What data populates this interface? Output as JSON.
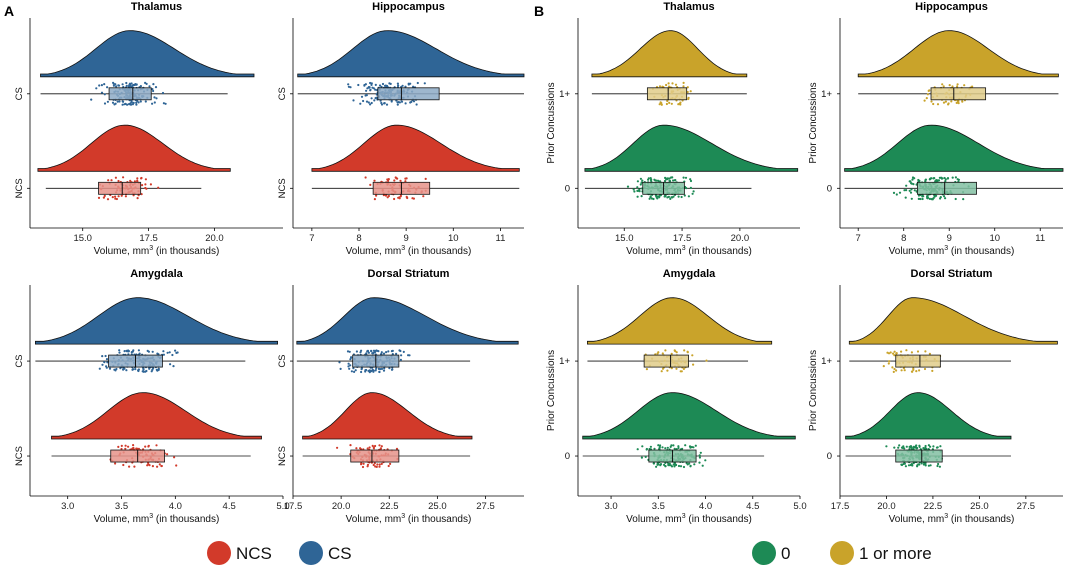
{
  "panel_letters": [
    "A",
    "B"
  ],
  "colors": {
    "NCS": "#d23a2a",
    "CS": "#2f6596",
    "zero": "#1d8a55",
    "one_plus": "#c9a32a"
  },
  "legend": {
    "left": [
      {
        "label": "NCS",
        "color": "#d23a2a"
      },
      {
        "label": "CS",
        "color": "#2f6596"
      }
    ],
    "right": [
      {
        "label": "0",
        "color": "#1d8a55"
      },
      {
        "label": "1 or more",
        "color": "#c9a32a"
      }
    ]
  },
  "xlabel_prefix": "Volume, mm",
  "xlabel_sup": "3",
  "xlabel_suffix": " (in thousands)",
  "ylabel_B": "Prior Concussions",
  "chart_data": [
    {
      "type": "raincloud",
      "panel": "A",
      "title": "Thalamus",
      "xlim": [
        13.0,
        22.6
      ],
      "xticks": [
        "15.0",
        "17.5",
        "20.0"
      ],
      "groups": [
        {
          "name": "CS",
          "color": "#2f6596",
          "min": 13.4,
          "q1": 16.0,
          "median": 16.9,
          "q3": 17.6,
          "max": 20.5,
          "peak": 16.8,
          "lo": 13.4,
          "hi": 21.5,
          "n": 160
        },
        {
          "name": "NCS",
          "color": "#d23a2a",
          "min": 13.6,
          "q1": 15.6,
          "median": 16.5,
          "q3": 17.2,
          "max": 19.5,
          "peak": 16.6,
          "lo": 13.3,
          "hi": 20.6,
          "n": 80
        }
      ]
    },
    {
      "type": "raincloud",
      "panel": "A",
      "title": "Hippocampus",
      "xlim": [
        6.6,
        11.5
      ],
      "xticks": [
        "7",
        "8",
        "9",
        "10",
        "11"
      ],
      "groups": [
        {
          "name": "CS",
          "color": "#2f6596",
          "min": 6.7,
          "q1": 8.4,
          "median": 8.9,
          "q3": 9.7,
          "max": 11.5,
          "peak": 8.6,
          "lo": 6.7,
          "hi": 11.5,
          "n": 160
        },
        {
          "name": "NCS",
          "color": "#d23a2a",
          "min": 7.0,
          "q1": 8.3,
          "median": 8.9,
          "q3": 9.5,
          "max": 11.4,
          "peak": 8.8,
          "lo": 7.0,
          "hi": 11.4,
          "n": 80
        }
      ]
    },
    {
      "type": "raincloud",
      "panel": "A",
      "title": "Amygdala",
      "xlim": [
        2.65,
        5.0
      ],
      "xticks": [
        "3.0",
        "3.5",
        "4.0",
        "4.5",
        "5.0"
      ],
      "groups": [
        {
          "name": "CS",
          "color": "#2f6596",
          "min": 2.7,
          "q1": 3.38,
          "median": 3.63,
          "q3": 3.88,
          "max": 4.65,
          "peak": 3.65,
          "lo": 2.7,
          "hi": 4.95,
          "n": 160
        },
        {
          "name": "NCS",
          "color": "#d23a2a",
          "min": 2.85,
          "q1": 3.4,
          "median": 3.65,
          "q3": 3.9,
          "max": 4.7,
          "peak": 3.7,
          "lo": 2.85,
          "hi": 4.8,
          "n": 80
        }
      ]
    },
    {
      "type": "raincloud",
      "panel": "A",
      "title": "Dorsal Striatum",
      "xlim": [
        17.5,
        29.5
      ],
      "xticks": [
        "17.5",
        "20.0",
        "22.5",
        "25.0",
        "27.5"
      ],
      "groups": [
        {
          "name": "CS",
          "color": "#2f6596",
          "min": 17.7,
          "q1": 20.6,
          "median": 21.8,
          "q3": 23.0,
          "max": 26.7,
          "peak": 21.7,
          "lo": 17.7,
          "hi": 29.2,
          "n": 160
        },
        {
          "name": "NCS",
          "color": "#d23a2a",
          "min": 18.0,
          "q1": 20.5,
          "median": 21.6,
          "q3": 23.0,
          "max": 26.7,
          "peak": 21.6,
          "lo": 18.0,
          "hi": 26.8,
          "n": 80
        }
      ]
    },
    {
      "type": "raincloud",
      "panel": "B",
      "title": "Thalamus",
      "xlim": [
        13.0,
        22.6
      ],
      "xticks": [
        "15.0",
        "17.5",
        "20.0"
      ],
      "groups": [
        {
          "name": "1+",
          "color": "#c9a32a",
          "min": 13.6,
          "q1": 16.0,
          "median": 16.9,
          "q3": 17.7,
          "max": 20.3,
          "peak": 17.0,
          "lo": 13.6,
          "hi": 20.3,
          "n": 60
        },
        {
          "name": "0",
          "color": "#1d8a55",
          "min": 13.3,
          "q1": 15.8,
          "median": 16.7,
          "q3": 17.6,
          "max": 20.5,
          "peak": 16.7,
          "lo": 13.3,
          "hi": 22.5,
          "n": 160
        }
      ]
    },
    {
      "type": "raincloud",
      "panel": "B",
      "title": "Hippocampus",
      "xlim": [
        6.6,
        11.5
      ],
      "xticks": [
        "7",
        "8",
        "9",
        "10",
        "11"
      ],
      "groups": [
        {
          "name": "1+",
          "color": "#c9a32a",
          "min": 7.0,
          "q1": 8.6,
          "median": 9.1,
          "q3": 9.8,
          "max": 11.4,
          "peak": 9.0,
          "lo": 7.0,
          "hi": 11.4,
          "n": 60
        },
        {
          "name": "0",
          "color": "#1d8a55",
          "min": 6.7,
          "q1": 8.3,
          "median": 8.9,
          "q3": 9.6,
          "max": 11.5,
          "peak": 8.6,
          "lo": 6.7,
          "hi": 11.5,
          "n": 160
        }
      ]
    },
    {
      "type": "raincloud",
      "panel": "B",
      "title": "Amygdala",
      "xlim": [
        2.65,
        5.0
      ],
      "xticks": [
        "3.0",
        "3.5",
        "4.0",
        "4.5",
        "5.0"
      ],
      "groups": [
        {
          "name": "1+",
          "color": "#c9a32a",
          "min": 2.75,
          "q1": 3.35,
          "median": 3.63,
          "q3": 3.82,
          "max": 4.45,
          "peak": 3.65,
          "lo": 2.75,
          "hi": 4.7,
          "n": 60
        },
        {
          "name": "0",
          "color": "#1d8a55",
          "min": 2.7,
          "q1": 3.4,
          "median": 3.65,
          "q3": 3.9,
          "max": 4.62,
          "peak": 3.65,
          "lo": 2.7,
          "hi": 4.95,
          "n": 160
        }
      ]
    },
    {
      "type": "raincloud",
      "panel": "B",
      "title": "Dorsal Striatum",
      "xlim": [
        17.5,
        29.5
      ],
      "xticks": [
        "17.5",
        "20.0",
        "22.5",
        "25.0",
        "27.5"
      ],
      "groups": [
        {
          "name": "1+",
          "color": "#c9a32a",
          "min": 18.0,
          "q1": 20.5,
          "median": 21.8,
          "q3": 22.9,
          "max": 26.7,
          "peak": 21.4,
          "lo": 18.0,
          "hi": 29.2,
          "n": 60
        },
        {
          "name": "0",
          "color": "#1d8a55",
          "min": 17.8,
          "q1": 20.5,
          "median": 21.9,
          "q3": 23.0,
          "max": 26.7,
          "peak": 21.7,
          "lo": 17.8,
          "hi": 26.7,
          "n": 160
        }
      ]
    }
  ]
}
